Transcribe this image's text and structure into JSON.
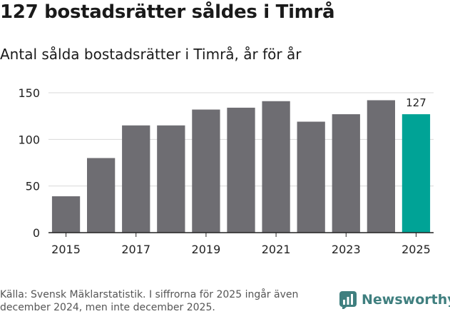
{
  "header": {
    "title": "127 bostadsrätter såldes i Timrå",
    "subtitle": "Antal sålda bostadsrätter i Timrå, år för år"
  },
  "chart_data": {
    "type": "bar",
    "title": "127 bostadsrätter såldes i Timrå",
    "subtitle": "Antal sålda bostadsrätter i Timrå, år för år",
    "xlabel": "",
    "ylabel": "",
    "categories": [
      "2015",
      "2016",
      "2017",
      "2018",
      "2019",
      "2020",
      "2021",
      "2022",
      "2023",
      "2024",
      "2025"
    ],
    "values": [
      39,
      80,
      115,
      115,
      132,
      134,
      141,
      119,
      127,
      142,
      127
    ],
    "x_tick_labels": [
      "2015",
      "2017",
      "2019",
      "2021",
      "2023",
      "2025"
    ],
    "y_ticks": [
      0,
      50,
      100,
      150
    ],
    "ylim": [
      0,
      150
    ],
    "grid": true,
    "highlight_index": 10,
    "highlight_label": "127",
    "colors": {
      "bar": "#6e6d72",
      "highlight": "#00a396",
      "grid": "#d9d9d9",
      "axis": "#222222"
    }
  },
  "footer": {
    "source": "Källa: Svensk Mäklarstatistik. I siffrorna för 2025 ingår även december 2024, men inte december 2025.",
    "brand": "Newsworthy",
    "brand_icon": "bar-chart-logo-icon"
  }
}
